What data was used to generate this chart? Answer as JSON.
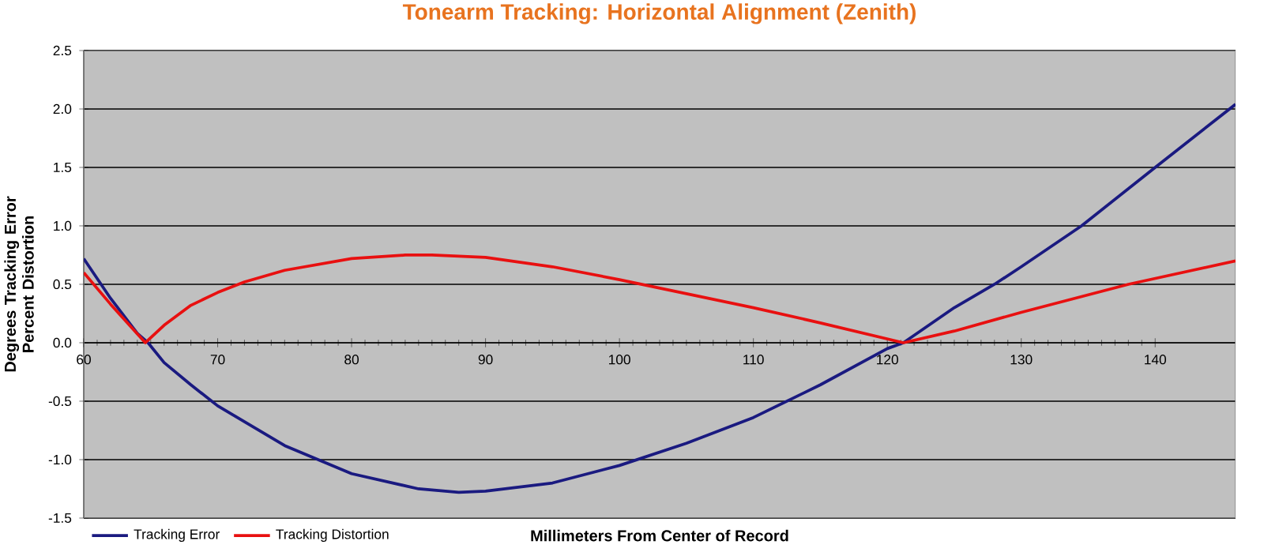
{
  "chart_data": {
    "type": "line",
    "title": "Tonearm Tracking:  Horizontal Alignment (Zenith)",
    "xlabel": "Millimeters From Center of Record",
    "ylabel": "Degrees Tracking Error Percent Distortion",
    "xlim": [
      60,
      146
    ],
    "xticks": [
      60,
      70,
      80,
      90,
      100,
      110,
      120,
      130,
      140
    ],
    "ylim": [
      -1.5,
      2.5
    ],
    "yticks": [
      {
        "value": -1.5,
        "label": "-1.5"
      },
      {
        "value": -1,
        "label": "-1.0"
      },
      {
        "value": -0.5,
        "label": "-0.5"
      },
      {
        "value": 0,
        "label": "0.0"
      },
      {
        "value": 0.5,
        "label": "0.5"
      },
      {
        "value": 1,
        "label": "1.0"
      },
      {
        "value": 1.5,
        "label": "1.5"
      },
      {
        "value": 2,
        "label": "2.0"
      },
      {
        "value": 2.5,
        "label": "2.5"
      }
    ],
    "grid": "y",
    "legend": "bottom left",
    "marker": "none",
    "line_style": "solid",
    "series": [
      {
        "name": "Tracking Error",
        "color": "#1a1a80",
        "x": [
          60,
          62,
          64,
          64.8,
          66,
          68,
          70,
          75,
          80,
          85,
          88,
          90,
          95,
          100,
          105,
          110,
          115,
          120,
          121.2,
          125,
          128,
          130,
          134.5,
          140,
          146
        ],
        "values": [
          0.72,
          0.38,
          0.08,
          0,
          -0.17,
          -0.36,
          -0.54,
          -0.88,
          -1.12,
          -1.25,
          -1.28,
          -1.27,
          -1.2,
          -1.05,
          -0.86,
          -0.64,
          -0.36,
          -0.05,
          0,
          0.3,
          0.5,
          0.65,
          1.0,
          1.5,
          2.04
        ]
      },
      {
        "name": "Tracking Distortion",
        "color": "#e81010",
        "x": [
          60,
          62,
          64.6,
          66,
          68,
          70,
          72,
          75,
          80,
          84,
          86,
          90,
          95,
          100,
          105,
          110,
          115,
          121.2,
          125,
          130,
          138,
          146
        ],
        "values": [
          0.6,
          0.33,
          0,
          0.15,
          0.32,
          0.43,
          0.52,
          0.62,
          0.72,
          0.75,
          0.75,
          0.73,
          0.65,
          0.54,
          0.42,
          0.3,
          0.17,
          0,
          0.1,
          0.26,
          0.5,
          0.7
        ]
      }
    ]
  }
}
